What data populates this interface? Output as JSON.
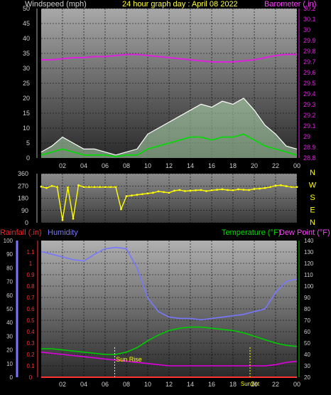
{
  "header": {
    "left": "Windspeed (mph)",
    "center": "24 hour graph day : April 08 2022",
    "right": "Barometer (.in)"
  },
  "colors": {
    "wind_gust": "#ffffff",
    "wind_avg": "#00dd00",
    "wind_fill": "#c8ffc8",
    "barometer": "#dd22dd",
    "direction": "#ffff00",
    "rain": "#ff3333",
    "humidity": "#7777ff",
    "temperature": "#00cc00",
    "dewpoint": "#dd00dd",
    "sun": "#ffff00",
    "label_red": "#ff2222",
    "label_blue": "#7777ff",
    "label_green": "#00dd00",
    "label_magenta": "#ff44ff"
  },
  "x_ticks": [
    "02",
    "04",
    "06",
    "08",
    "10",
    "12",
    "14",
    "16",
    "18",
    "20",
    "22",
    "00"
  ],
  "chart_data": [
    {
      "type": "line",
      "panel": "wind_barometer",
      "title": "24 hour graph day : April 08 2022",
      "ylabel": "Windspeed (mph)",
      "y2label": "Barometer (.in)",
      "ylim": [
        0,
        50
      ],
      "y_ticks": [
        0,
        5,
        10,
        15,
        20,
        25,
        30,
        35,
        40,
        45,
        50
      ],
      "y2lim": [
        28.8,
        30.2
      ],
      "y2_ticks": [
        "28.8",
        "28.9",
        "29",
        "29.1",
        "29.2",
        "29.3",
        "29.4",
        "29.5",
        "29.6",
        "29.7",
        "29.8",
        "29.9",
        "30",
        "30.1",
        "30.2"
      ],
      "x_hours": [
        0,
        1,
        2,
        3,
        4,
        5,
        6,
        7,
        8,
        9,
        10,
        11,
        12,
        13,
        14,
        15,
        16,
        17,
        18,
        19,
        20,
        21,
        22,
        23,
        24
      ],
      "series": [
        {
          "key": "gust",
          "values": [
            2,
            4,
            7,
            5,
            3,
            3,
            2,
            1,
            2,
            3,
            8,
            10,
            12,
            14,
            16,
            18,
            17,
            19,
            18,
            20,
            16,
            11,
            8,
            4,
            3
          ]
        },
        {
          "key": "avg",
          "values": [
            1,
            2,
            3,
            2,
            1,
            1,
            1,
            0.5,
            1,
            1,
            3,
            4,
            5,
            6,
            7,
            7,
            6,
            7,
            7,
            8,
            6,
            4,
            3,
            2,
            1
          ]
        },
        {
          "key": "barometer",
          "values": [
            29.72,
            29.72,
            29.73,
            29.74,
            29.74,
            29.75,
            29.75,
            29.76,
            29.77,
            29.77,
            29.76,
            29.75,
            29.74,
            29.73,
            29.72,
            29.71,
            29.7,
            29.7,
            29.7,
            29.71,
            29.72,
            29.74,
            29.76,
            29.77,
            29.77
          ]
        }
      ]
    },
    {
      "type": "scatter",
      "panel": "wind_direction",
      "ylim": [
        0,
        360
      ],
      "y_ticks": [
        0,
        90,
        180,
        270,
        360
      ],
      "compass": [
        "N",
        "W",
        "S",
        "E",
        "N"
      ],
      "x_hours": [
        0,
        0.5,
        1,
        1.5,
        2,
        2.5,
        3,
        3.5,
        4,
        4.5,
        5,
        5.5,
        6,
        6.5,
        7,
        7.5,
        8,
        8.5,
        9,
        9.5,
        10,
        10.5,
        11,
        11.5,
        12,
        12.5,
        13,
        13.5,
        14,
        14.5,
        15,
        15.5,
        16,
        16.5,
        17,
        17.5,
        18,
        18.5,
        19,
        19.5,
        20,
        20.5,
        21,
        21.5,
        22,
        22.5,
        23,
        23.5,
        24
      ],
      "values": [
        265,
        255,
        270,
        262,
        20,
        260,
        30,
        275,
        262,
        262,
        262,
        262,
        262,
        262,
        262,
        100,
        195,
        200,
        205,
        210,
        215,
        220,
        230,
        225,
        220,
        235,
        240,
        232,
        235,
        238,
        240,
        232,
        238,
        242,
        245,
        240,
        238,
        245,
        242,
        240,
        248,
        250,
        255,
        262,
        272,
        275,
        268,
        262,
        262
      ]
    },
    {
      "type": "line",
      "panel": "rain_humidity_temp",
      "left_labels": [
        "Rainfall (.in)",
        "Humidity"
      ],
      "right_labels": [
        "Temperature (°F)",
        "Dew Point (°F)"
      ],
      "rain_ylim": [
        0,
        1.2
      ],
      "rain_ticks": [
        "0",
        "0.1",
        "0.2",
        "0.3",
        "0.4",
        "0.5",
        "0.6",
        "0.7",
        "0.8",
        "0.9",
        "1",
        "1.1"
      ],
      "hum_ylim": [
        0,
        100
      ],
      "hum_ticks": [
        0,
        10,
        20,
        30,
        40,
        50,
        60,
        70,
        80,
        90,
        100
      ],
      "temp_ylim": [
        20,
        140
      ],
      "temp_ticks": [
        20,
        30,
        40,
        50,
        60,
        70,
        80,
        90,
        100,
        110,
        120,
        130,
        140
      ],
      "annotations": [
        "Sun Rise",
        "SunSet"
      ],
      "x_hours": [
        0,
        1,
        2,
        3,
        4,
        5,
        6,
        7,
        8,
        9,
        10,
        11,
        12,
        13,
        14,
        15,
        16,
        17,
        18,
        19,
        20,
        21,
        22,
        23,
        24
      ],
      "series": [
        {
          "key": "humidity",
          "values": [
            92,
            90,
            88,
            86,
            85,
            90,
            94,
            95,
            94,
            80,
            58,
            48,
            44,
            43,
            43,
            42,
            43,
            44,
            45,
            46,
            48,
            50,
            62,
            70,
            72
          ]
        },
        {
          "key": "temperature",
          "values": [
            45,
            45,
            44,
            43,
            42,
            41,
            40,
            40,
            42,
            46,
            52,
            57,
            61,
            63,
            64,
            64,
            63,
            62,
            61,
            59,
            56,
            53,
            50,
            48,
            47
          ]
        },
        {
          "key": "dewpoint",
          "values": [
            42,
            41,
            40,
            39,
            38,
            37,
            36,
            35,
            34,
            33,
            32,
            31,
            30,
            30,
            30,
            30,
            30,
            30,
            30,
            30,
            30,
            30,
            31,
            33,
            34
          ]
        },
        {
          "key": "rain",
          "values": [
            0,
            0,
            0,
            0,
            0,
            0,
            0,
            0,
            0,
            0,
            0,
            0,
            0,
            0,
            0,
            0,
            0,
            0,
            0,
            0,
            0,
            0,
            0,
            0,
            0
          ]
        }
      ]
    }
  ]
}
